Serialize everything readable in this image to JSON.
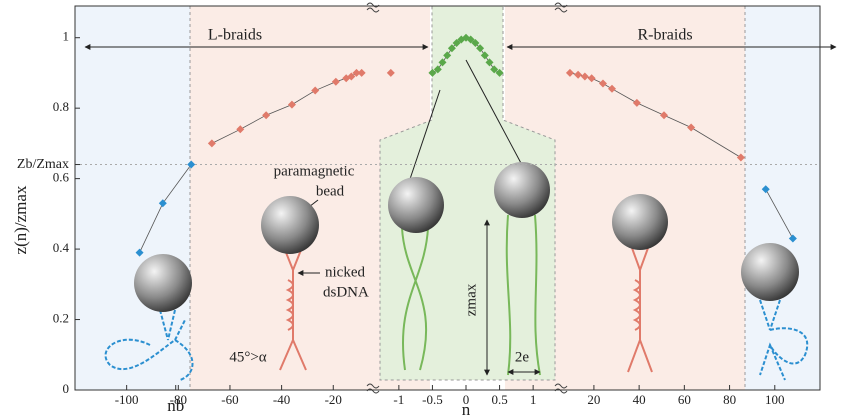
{
  "chart_data": {
    "type": "scatter",
    "ylabel": "z(n)/zmax",
    "xlabel": "n",
    "ylim": [
      0,
      1.09
    ],
    "yticks": [
      0,
      0.2,
      0.4,
      0.6,
      0.8,
      1,
      {
        "value": 0.64,
        "label": "Zb/Zmax"
      }
    ],
    "segments": [
      {
        "xlim": [
          -120,
          -5
        ],
        "xticks": [
          -100,
          -80,
          -60,
          -40,
          -20,
          {
            "value": -81,
            "label": "nb"
          }
        ],
        "series": [
          {
            "color": "#2b8fd0",
            "x": [
              -95,
              -86,
              -75
            ],
            "values": [
              0.39,
              0.53,
              0.64
            ]
          },
          {
            "color": "#e07a6a",
            "x": [
              -67,
              -56,
              -46,
              -36,
              -27,
              -19,
              -15,
              -13,
              -11,
              -9
            ],
            "values": [
              0.7,
              0.74,
              0.78,
              0.81,
              0.85,
              0.875,
              0.885,
              0.89,
              0.9,
              0.9
            ]
          }
        ]
      },
      {
        "xlim": [
          -1.4,
          1.4
        ],
        "xticks": [
          -1,
          -0.5,
          0,
          0.5,
          1
        ],
        "series": [
          {
            "color": "#e07a6a",
            "x": [
              -1.12
            ],
            "values": [
              0.9
            ]
          },
          {
            "color": "#5aa84a",
            "x": [
              -0.5,
              -0.42,
              -0.35,
              -0.28,
              -0.21,
              -0.14,
              -0.07,
              0,
              0.07,
              0.14,
              0.21,
              0.28,
              0.35,
              0.42,
              0.5
            ],
            "values": [
              0.9,
              0.91,
              0.93,
              0.95,
              0.97,
              0.985,
              0.995,
              1,
              0.995,
              0.985,
              0.97,
              0.95,
              0.93,
              0.91,
              0.9
            ]
          }
        ]
      },
      {
        "xlim": [
          5,
          120
        ],
        "xticks": [
          20,
          40,
          60,
          80,
          100
        ],
        "series": [
          {
            "color": "#e07a6a",
            "x": [
              9.4,
              13,
              16,
              19,
              24,
              28,
              39,
              51,
              63,
              85
            ],
            "values": [
              0.9,
              0.895,
              0.89,
              0.885,
              0.87,
              0.855,
              0.815,
              0.78,
              0.745,
              0.66
            ]
          },
          {
            "color": "#2b8fd0",
            "x": [
              96,
              108
            ],
            "values": [
              0.57,
              0.43
            ]
          }
        ]
      }
    ],
    "regions": [
      "L-braids",
      "R-braids"
    ],
    "annotations": {
      "bead": [
        "paramagnetic",
        "bead"
      ],
      "dna": [
        "nicked",
        "dsDNA"
      ],
      "angle": "45°>α",
      "zmax": "zmax",
      "width": "2e"
    }
  }
}
